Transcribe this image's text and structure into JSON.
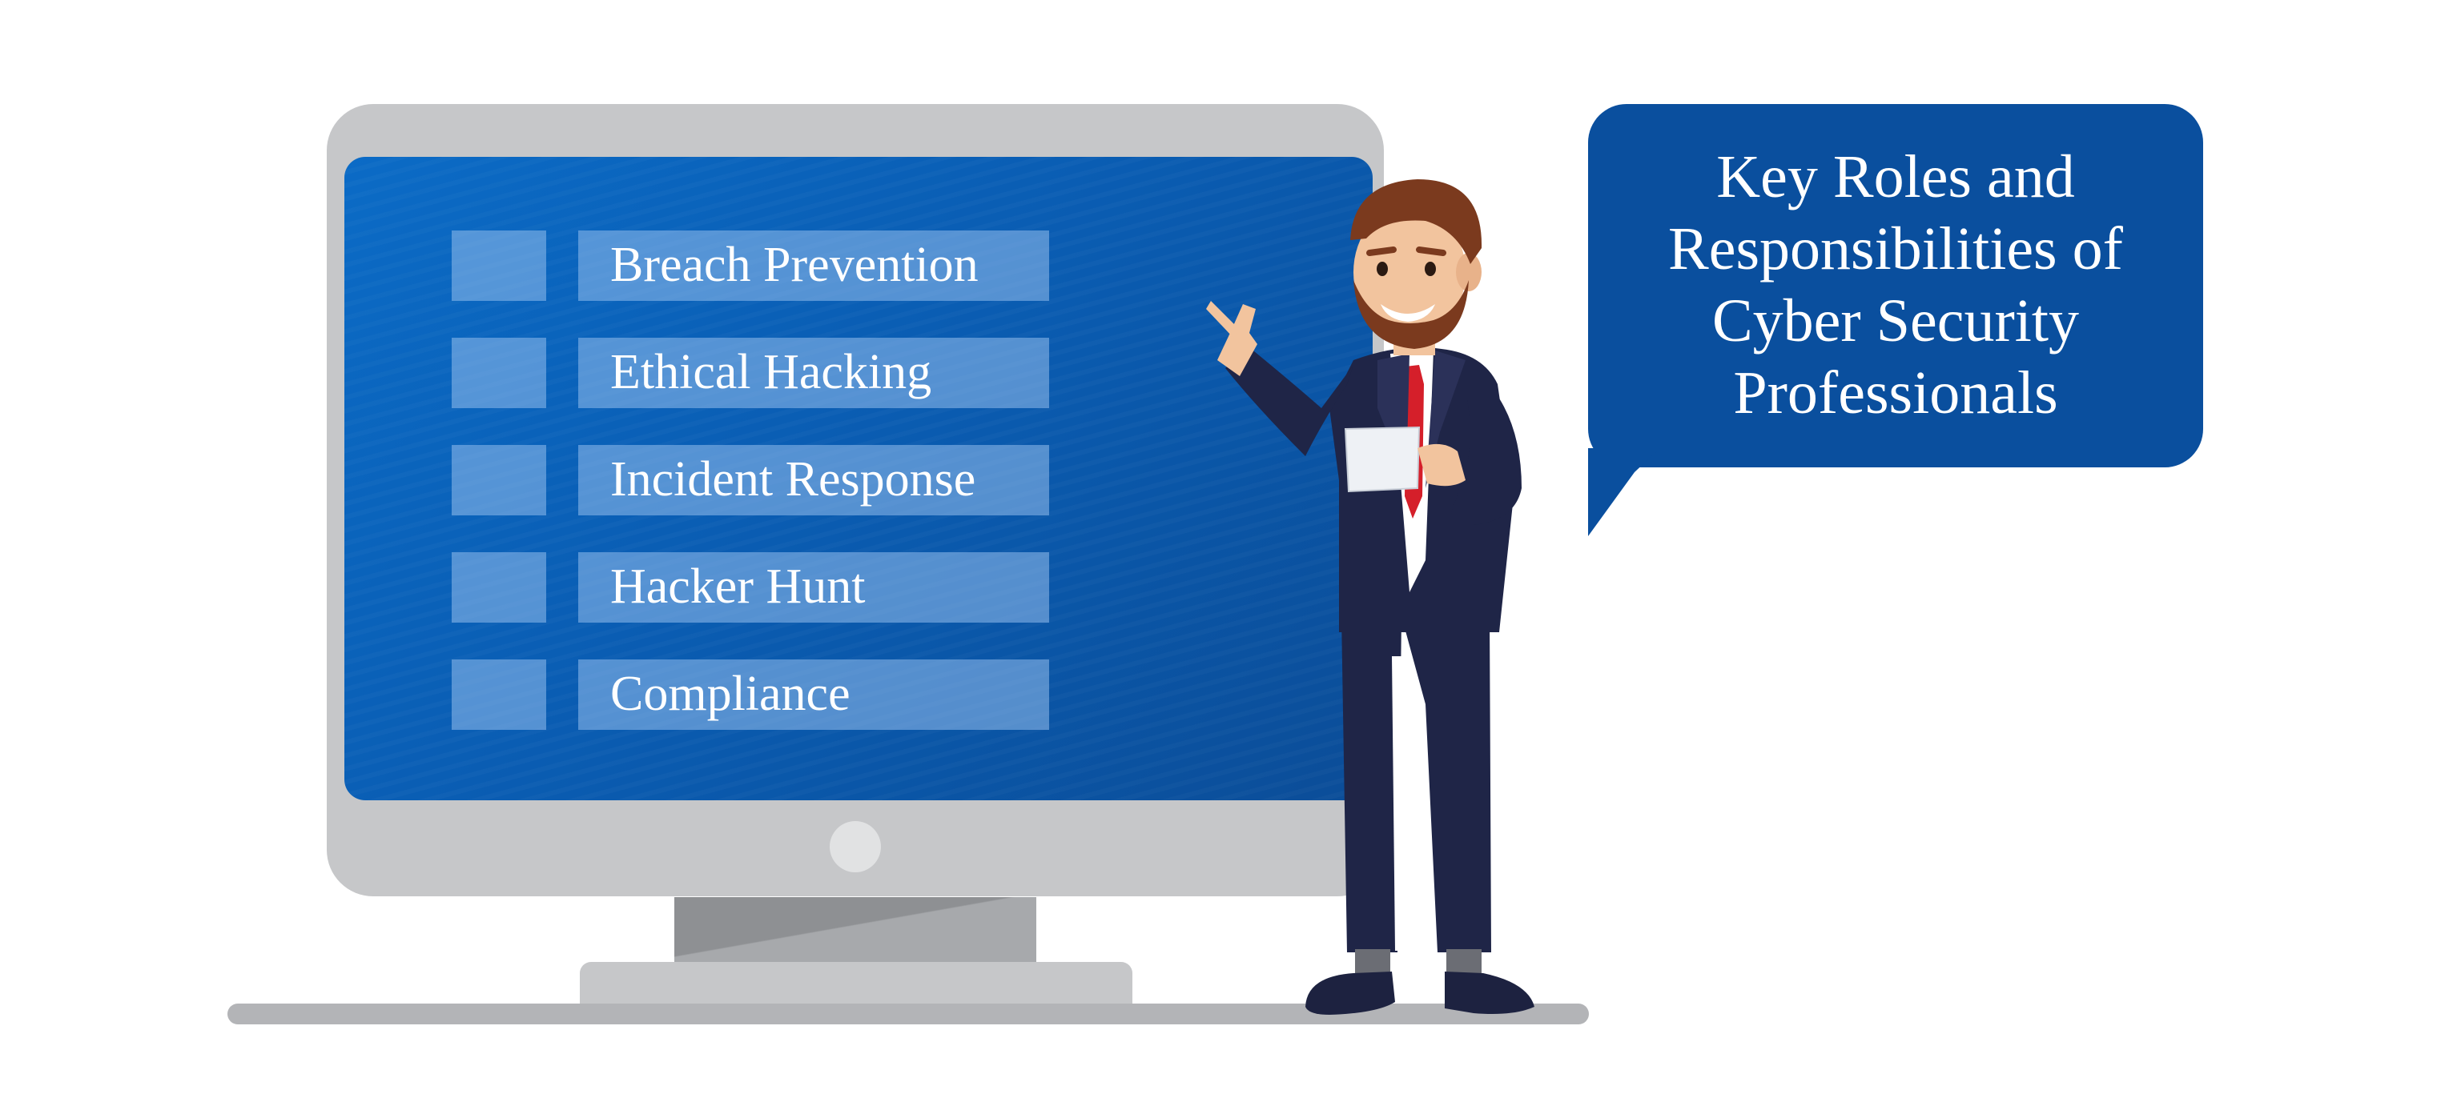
{
  "screen_menu": {
    "items": [
      {
        "label": "Breach Prevention"
      },
      {
        "label": "Ethical Hacking"
      },
      {
        "label": "Incident Response"
      },
      {
        "label": "Hacker Hunt"
      },
      {
        "label": "Compliance"
      }
    ]
  },
  "speech_bubble": {
    "lines": [
      "Key Roles and",
      "Responsibilities of",
      "Cyber Security",
      "Professionals"
    ]
  },
  "colors": {
    "screen_blue": "#0b5fb5",
    "bubble_blue": "#0a4f9e",
    "monitor_gray": "#c6c7c9",
    "suit_navy": "#1f2547",
    "tie_red": "#d51f2a"
  }
}
